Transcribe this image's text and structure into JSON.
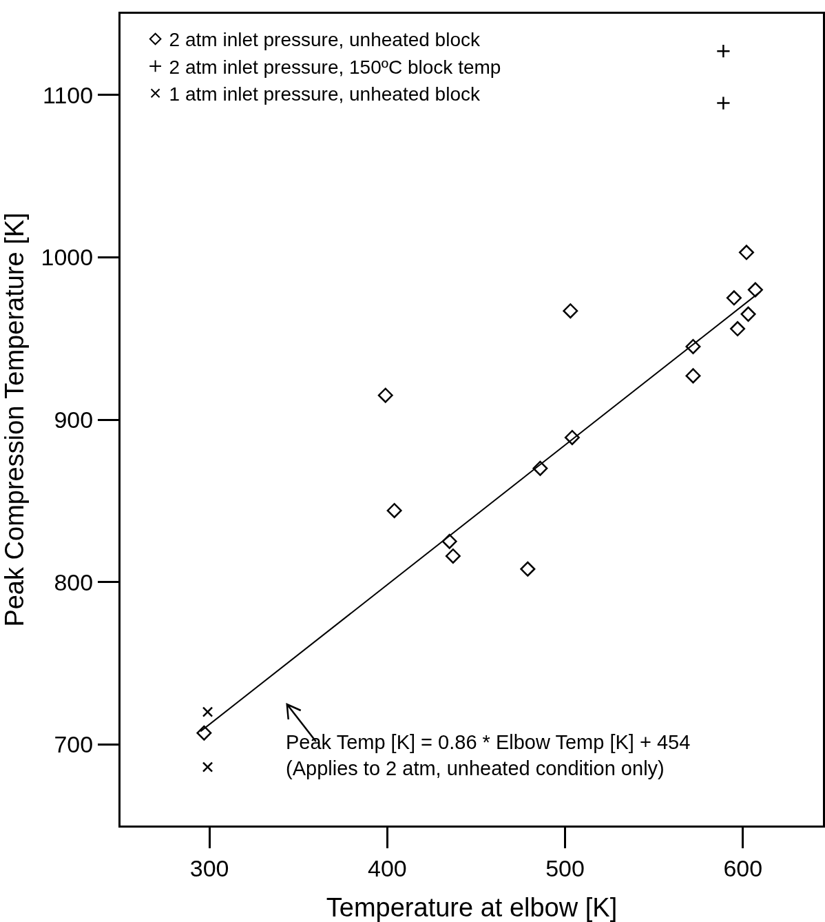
{
  "chart_data": {
    "type": "scatter",
    "xlabel": "Temperature at elbow [K]",
    "ylabel": "Peak Compression Temperature [K]",
    "xlim": [
      250,
      645
    ],
    "xticks": [
      300,
      400,
      500,
      600
    ],
    "ylim": [
      650,
      1150
    ],
    "yticks": [
      700,
      800,
      900,
      1000,
      1100
    ],
    "grid": false,
    "legend": "top left",
    "series": [
      {
        "name": "2 atm inlet pressure, unheated block",
        "color": "#000000",
        "marker": "diamond",
        "x": [
          297,
          399,
          404,
          435,
          437,
          479,
          486,
          503,
          504,
          572,
          572,
          595,
          597,
          602,
          603,
          607
        ],
        "values": [
          707,
          915,
          844,
          825,
          816,
          808,
          870,
          967,
          889,
          945,
          927,
          975,
          956,
          1003,
          965,
          980
        ]
      },
      {
        "name": "2 atm inlet pressure, 150ºC block temp",
        "color": "#000000",
        "marker": "cross",
        "x": [
          589,
          589
        ],
        "values": [
          1127,
          1095
        ]
      },
      {
        "name": "1 atm inlet pressure, unheated block",
        "color": "#000000",
        "marker": "x",
        "x": [
          299,
          299
        ],
        "values": [
          720,
          686
        ]
      },
      {
        "type": "line",
        "color": "#000000",
        "marker": "none",
        "line_style": "solid",
        "x": [
          295,
          610
        ],
        "values": [
          708,
          979
        ]
      }
    ],
    "annotations": [
      "Peak Temp [K] = 0.86 * Elbow Temp [K] + 454\n(Applies to 2 atm, unheated condition only)"
    ]
  }
}
